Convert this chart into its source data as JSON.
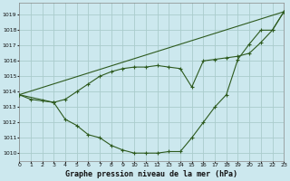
{
  "background_color": "#cce8ee",
  "grid_color": "#aacccc",
  "line_color": "#2d5a1e",
  "title": "Graphe pression niveau de la mer (hPa)",
  "xlim": [
    0,
    23
  ],
  "ylim": [
    1009.5,
    1019.8
  ],
  "yticks": [
    1010,
    1011,
    1012,
    1013,
    1014,
    1015,
    1016,
    1017,
    1018,
    1019
  ],
  "xticks": [
    0,
    1,
    2,
    3,
    4,
    5,
    6,
    7,
    8,
    9,
    10,
    11,
    12,
    13,
    14,
    15,
    16,
    17,
    18,
    19,
    20,
    21,
    22,
    23
  ],
  "series": [
    {
      "x": [
        0,
        1,
        2,
        3,
        4,
        5,
        6,
        7,
        8,
        9,
        10,
        11,
        12,
        13,
        14,
        15,
        16,
        17,
        18,
        19,
        20,
        21,
        22,
        23
      ],
      "y": [
        1013.8,
        1013.5,
        1013.4,
        1013.3,
        1012.2,
        1011.8,
        1011.2,
        1011.0,
        1010.5,
        1010.2,
        1010.0,
        1010.0,
        1010.0,
        1010.1,
        1010.1,
        1011.0,
        1012.0,
        1013.0,
        1013.8,
        1016.1,
        1017.1,
        1018.0,
        1018.0,
        1019.2
      ]
    },
    {
      "x": [
        0,
        3,
        4,
        5,
        6,
        7,
        8,
        9,
        10,
        11,
        12,
        13,
        14,
        15,
        16,
        17,
        18,
        19,
        20,
        21,
        22,
        23
      ],
      "y": [
        1013.8,
        1013.3,
        1013.5,
        1014.0,
        1014.5,
        1015.0,
        1015.3,
        1015.5,
        1015.6,
        1015.6,
        1015.7,
        1015.6,
        1015.5,
        1014.3,
        1016.0,
        1016.1,
        1016.2,
        1016.3,
        1016.5,
        1017.2,
        1018.0,
        1019.2
      ]
    },
    {
      "x": [
        0,
        23
      ],
      "y": [
        1013.8,
        1019.2
      ]
    }
  ]
}
